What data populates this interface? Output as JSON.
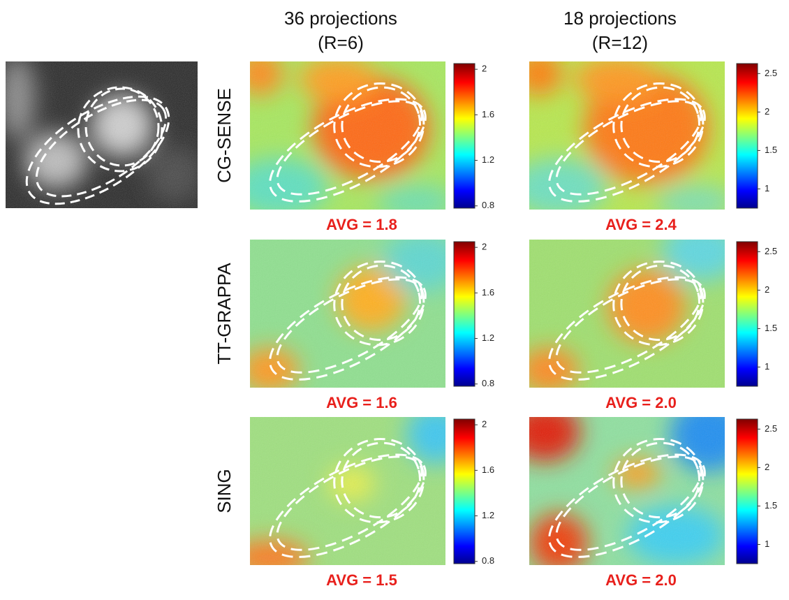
{
  "columns": [
    {
      "title": "36 projections",
      "subtitle": "(R=6)",
      "colorbar": {
        "range": [
          0.78,
          2.05
        ],
        "ticks": [
          0.8,
          1.2,
          1.6,
          2
        ]
      }
    },
    {
      "title": "18 projections",
      "subtitle": "(R=12)",
      "colorbar": {
        "range": [
          0.75,
          2.63
        ],
        "ticks": [
          1,
          1.5,
          2,
          2.5
        ]
      }
    }
  ],
  "rows": [
    {
      "label": "CG-SENSE",
      "avg": [
        "AVG = 1.8",
        "AVG = 2.4"
      ]
    },
    {
      "label": "TT-GRAPPA",
      "avg": [
        "AVG = 1.6",
        "AVG = 2.0"
      ]
    },
    {
      "label": "SING",
      "avg": [
        "AVG = 1.5",
        "AVG = 2.0"
      ]
    }
  ]
}
